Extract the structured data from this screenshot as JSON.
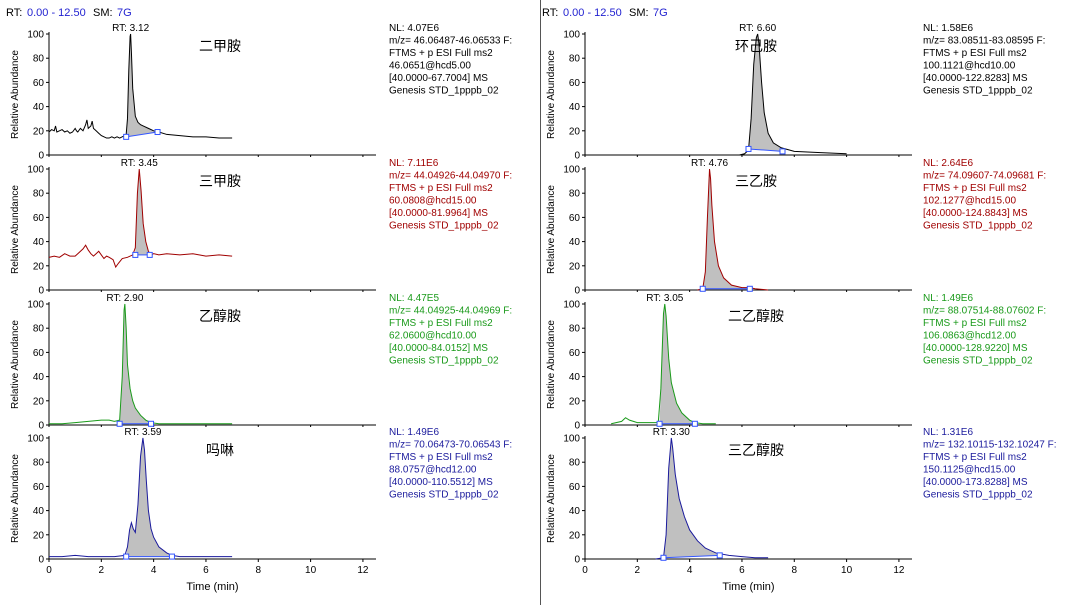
{
  "header": {
    "rt_label": "RT:",
    "rt_range": "0.00 - 12.50",
    "sm_label": "SM:",
    "sm_value": "7G"
  },
  "axis": {
    "ylabel": "Relative Abundance",
    "xlabel": "Time (min)",
    "yticks": [
      0,
      20,
      40,
      60,
      80,
      100
    ],
    "xticks": [
      0,
      2,
      4,
      6,
      8,
      10,
      12
    ],
    "xlim": [
      0,
      12.5
    ],
    "ylim": [
      0,
      100
    ]
  },
  "colors": {
    "black": "#000000",
    "red": "#a00000",
    "green": "#1a9a1a",
    "blue": "#1a1a9c",
    "fill": "#c0c0c0",
    "marker": "#3355ff",
    "header_blue": "#1f1fd0"
  },
  "chart_data": [
    {
      "type": "line",
      "compound": "二甲胺",
      "rt": "RT: 3.12",
      "peak_rt": 3.12,
      "color": "black",
      "info": [
        "NL: 4.07E6",
        "m/z= 46.06487-46.06533 F:",
        "FTMS + p ESI Full ms2",
        "46.0651@hcd5.00",
        "[40.0000-67.7004]  MS",
        "Genesis STD_1pppb_02"
      ],
      "baseline_start": [
        2.95,
        15
      ],
      "baseline_end": [
        4.15,
        19
      ],
      "points": [
        [
          0,
          19
        ],
        [
          0.1,
          21
        ],
        [
          0.2,
          20
        ],
        [
          0.25,
          24
        ],
        [
          0.3,
          19
        ],
        [
          0.4,
          20
        ],
        [
          0.5,
          21
        ],
        [
          0.6,
          19
        ],
        [
          0.7,
          20
        ],
        [
          0.8,
          18
        ],
        [
          0.9,
          19
        ],
        [
          1.0,
          22
        ],
        [
          1.05,
          20
        ],
        [
          1.1,
          19
        ],
        [
          1.2,
          22
        ],
        [
          1.3,
          20
        ],
        [
          1.4,
          25
        ],
        [
          1.45,
          29
        ],
        [
          1.5,
          22
        ],
        [
          1.6,
          24
        ],
        [
          1.65,
          28
        ],
        [
          1.7,
          22
        ],
        [
          1.8,
          20
        ],
        [
          1.9,
          18
        ],
        [
          2.0,
          16
        ],
        [
          2.1,
          15
        ],
        [
          2.2,
          14
        ],
        [
          2.3,
          14
        ],
        [
          2.4,
          15
        ],
        [
          2.5,
          14
        ],
        [
          2.6,
          15
        ],
        [
          2.7,
          14
        ],
        [
          2.8,
          15
        ],
        [
          2.9,
          16
        ],
        [
          2.95,
          17
        ],
        [
          3.0,
          30
        ],
        [
          3.05,
          70
        ],
        [
          3.1,
          98
        ],
        [
          3.12,
          100
        ],
        [
          3.15,
          85
        ],
        [
          3.2,
          55
        ],
        [
          3.3,
          32
        ],
        [
          3.4,
          27
        ],
        [
          3.5,
          25
        ],
        [
          3.6,
          24
        ],
        [
          3.8,
          22
        ],
        [
          4.0,
          20
        ],
        [
          4.2,
          19
        ],
        [
          4.5,
          17
        ],
        [
          5.0,
          16
        ],
        [
          5.5,
          15
        ],
        [
          6.0,
          15
        ],
        [
          6.5,
          14
        ],
        [
          7.0,
          14
        ]
      ]
    },
    {
      "type": "line",
      "compound": "三甲胺",
      "rt": "RT: 3.45",
      "peak_rt": 3.45,
      "color": "red",
      "info": [
        "NL: 7.11E6",
        "m/z= 44.04926-44.04970 F:",
        "FTMS + p ESI Full ms2",
        "60.0808@hcd15.00",
        "[40.0000-81.9964]  MS",
        "Genesis STD_1pppb_02"
      ],
      "baseline_start": [
        3.3,
        29
      ],
      "baseline_end": [
        3.85,
        29
      ],
      "points": [
        [
          0,
          27
        ],
        [
          0.2,
          28
        ],
        [
          0.4,
          27
        ],
        [
          0.6,
          30
        ],
        [
          0.8,
          28
        ],
        [
          1.0,
          28
        ],
        [
          1.1,
          30
        ],
        [
          1.3,
          34
        ],
        [
          1.4,
          37
        ],
        [
          1.5,
          33
        ],
        [
          1.6,
          30
        ],
        [
          1.7,
          28
        ],
        [
          1.8,
          30
        ],
        [
          1.9,
          32
        ],
        [
          2.0,
          29
        ],
        [
          2.1,
          26
        ],
        [
          2.2,
          28
        ],
        [
          2.3,
          27
        ],
        [
          2.45,
          25
        ],
        [
          2.55,
          19
        ],
        [
          2.65,
          22
        ],
        [
          2.8,
          26
        ],
        [
          3.0,
          27
        ],
        [
          3.2,
          29
        ],
        [
          3.3,
          35
        ],
        [
          3.38,
          80
        ],
        [
          3.45,
          100
        ],
        [
          3.52,
          82
        ],
        [
          3.6,
          55
        ],
        [
          3.7,
          40
        ],
        [
          3.8,
          32
        ],
        [
          3.9,
          29
        ],
        [
          4.0,
          30
        ],
        [
          4.2,
          29
        ],
        [
          4.5,
          30
        ],
        [
          5.0,
          29
        ],
        [
          5.5,
          30
        ],
        [
          6.0,
          28
        ],
        [
          6.5,
          29
        ],
        [
          7.0,
          28
        ]
      ]
    },
    {
      "type": "line",
      "compound": "乙醇胺",
      "rt": "RT: 2.90",
      "peak_rt": 2.9,
      "color": "green",
      "info": [
        "NL: 4.47E5",
        "m/z= 44.04925-44.04969 F:",
        "FTMS + p ESI Full ms2",
        "62.0600@hcd10.00",
        "[40.0000-84.0152]  MS",
        "Genesis STD_1pppb_02"
      ],
      "baseline_start": [
        2.7,
        1
      ],
      "baseline_end": [
        3.9,
        1
      ],
      "points": [
        [
          0,
          1
        ],
        [
          0.5,
          1
        ],
        [
          1.0,
          2
        ],
        [
          1.5,
          3
        ],
        [
          2.0,
          4
        ],
        [
          2.3,
          4
        ],
        [
          2.5,
          3
        ],
        [
          2.7,
          4
        ],
        [
          2.8,
          40
        ],
        [
          2.87,
          95
        ],
        [
          2.9,
          100
        ],
        [
          2.95,
          80
        ],
        [
          3.0,
          50
        ],
        [
          3.1,
          30
        ],
        [
          3.2,
          20
        ],
        [
          3.3,
          14
        ],
        [
          3.5,
          8
        ],
        [
          3.7,
          4
        ],
        [
          3.9,
          2
        ],
        [
          4.2,
          1
        ],
        [
          5.0,
          1
        ],
        [
          6.0,
          1
        ],
        [
          7.0,
          1
        ]
      ]
    },
    {
      "type": "line",
      "compound": "吗啉",
      "rt": "RT: 3.59",
      "peak_rt": 3.59,
      "color": "blue",
      "info": [
        "NL: 1.49E6",
        "m/z= 70.06473-70.06543 F:",
        "FTMS + p ESI Full ms2",
        "88.0757@hcd12.00",
        "[40.0000-110.5512]  MS",
        "Genesis STD_1pppb_02"
      ],
      "baseline_start": [
        2.95,
        2
      ],
      "baseline_end": [
        4.7,
        2
      ],
      "points": [
        [
          0,
          2
        ],
        [
          0.5,
          2
        ],
        [
          1.0,
          3
        ],
        [
          1.5,
          2
        ],
        [
          2.0,
          2
        ],
        [
          2.5,
          2
        ],
        [
          2.9,
          3
        ],
        [
          3.0,
          10
        ],
        [
          3.08,
          24
        ],
        [
          3.15,
          30
        ],
        [
          3.22,
          25
        ],
        [
          3.3,
          22
        ],
        [
          3.4,
          45
        ],
        [
          3.5,
          85
        ],
        [
          3.59,
          100
        ],
        [
          3.65,
          90
        ],
        [
          3.72,
          65
        ],
        [
          3.8,
          40
        ],
        [
          3.9,
          25
        ],
        [
          4.0,
          18
        ],
        [
          4.2,
          10
        ],
        [
          4.5,
          5
        ],
        [
          4.7,
          3
        ],
        [
          5.0,
          2
        ],
        [
          6.0,
          2
        ],
        [
          7.0,
          2
        ]
      ]
    },
    {
      "type": "line",
      "compound": "环己胺",
      "rt": "RT: 6.60",
      "peak_rt": 6.6,
      "color": "black",
      "info": [
        "NL: 1.58E6",
        "m/z= 83.08511-83.08595 F:",
        "FTMS + p ESI Full ms2",
        "100.1121@hcd10.00",
        "[40.0000-122.8283]  MS",
        "Genesis STD_1pppb_02"
      ],
      "baseline_start": [
        6.25,
        5
      ],
      "baseline_end": [
        7.55,
        3
      ],
      "points": [
        [
          5.9,
          0
        ],
        [
          6.1,
          1
        ],
        [
          6.25,
          4
        ],
        [
          6.35,
          30
        ],
        [
          6.45,
          75
        ],
        [
          6.55,
          97
        ],
        [
          6.6,
          100
        ],
        [
          6.65,
          92
        ],
        [
          6.75,
          60
        ],
        [
          6.85,
          35
        ],
        [
          7.0,
          18
        ],
        [
          7.2,
          10
        ],
        [
          7.5,
          6
        ],
        [
          8.0,
          3
        ],
        [
          9.0,
          2
        ],
        [
          10.0,
          1
        ]
      ]
    },
    {
      "type": "line",
      "compound": "三乙胺",
      "rt": "RT: 4.76",
      "peak_rt": 4.76,
      "color": "red",
      "info": [
        "NL: 2.64E6",
        "m/z= 74.09607-74.09681 F:",
        "FTMS + p ESI Full ms2",
        "102.1277@hcd15.00",
        "[40.0000-124.8843]  MS",
        "Genesis STD_1pppb_02"
      ],
      "baseline_start": [
        4.5,
        1
      ],
      "baseline_end": [
        6.3,
        1
      ],
      "points": [
        [
          4.3,
          0
        ],
        [
          4.5,
          1
        ],
        [
          4.6,
          15
        ],
        [
          4.68,
          60
        ],
        [
          4.76,
          100
        ],
        [
          4.8,
          92
        ],
        [
          4.85,
          70
        ],
        [
          4.95,
          40
        ],
        [
          5.1,
          20
        ],
        [
          5.3,
          10
        ],
        [
          5.6,
          4
        ],
        [
          6.0,
          2
        ],
        [
          6.3,
          2
        ],
        [
          6.5,
          1
        ],
        [
          7.0,
          0
        ]
      ]
    },
    {
      "type": "line",
      "compound": "二乙醇胺",
      "rt": "RT: 3.05",
      "peak_rt": 3.05,
      "color": "green",
      "info": [
        "NL: 1.49E6",
        "m/z= 88.07514-88.07602 F:",
        "FTMS + p ESI Full ms2",
        "106.0863@hcd12.00",
        "[40.0000-128.9220]  MS",
        "Genesis STD_1pppb_02"
      ],
      "baseline_start": [
        2.85,
        1
      ],
      "baseline_end": [
        4.2,
        1
      ],
      "points": [
        [
          1.0,
          1
        ],
        [
          1.4,
          3
        ],
        [
          1.55,
          6
        ],
        [
          1.7,
          4
        ],
        [
          2.0,
          2
        ],
        [
          2.5,
          2
        ],
        [
          2.8,
          2
        ],
        [
          2.9,
          30
        ],
        [
          3.0,
          92
        ],
        [
          3.05,
          100
        ],
        [
          3.1,
          90
        ],
        [
          3.2,
          55
        ],
        [
          3.3,
          35
        ],
        [
          3.5,
          18
        ],
        [
          3.7,
          10
        ],
        [
          4.0,
          4
        ],
        [
          4.2,
          2
        ],
        [
          4.5,
          1
        ],
        [
          5.0,
          1
        ]
      ]
    },
    {
      "type": "line",
      "compound": "三乙醇胺",
      "rt": "RT: 3.30",
      "peak_rt": 3.3,
      "color": "blue",
      "info": [
        "NL: 1.31E6",
        "m/z= 132.10115-132.10247 F:",
        "FTMS + p ESI Full ms2",
        "150.1125@hcd15.00",
        "[40.0000-173.8288]  MS",
        "Genesis STD_1pppb_02"
      ],
      "baseline_start": [
        3.0,
        1
      ],
      "baseline_end": [
        5.15,
        3
      ],
      "points": [
        [
          2.7,
          0
        ],
        [
          3.0,
          1
        ],
        [
          3.1,
          20
        ],
        [
          3.2,
          75
        ],
        [
          3.3,
          100
        ],
        [
          3.35,
          92
        ],
        [
          3.45,
          70
        ],
        [
          3.6,
          50
        ],
        [
          3.8,
          35
        ],
        [
          4.0,
          24
        ],
        [
          4.3,
          15
        ],
        [
          4.6,
          9
        ],
        [
          5.0,
          5
        ],
        [
          5.5,
          3
        ],
        [
          6.0,
          2
        ],
        [
          6.5,
          1
        ],
        [
          7.0,
          1
        ]
      ]
    }
  ]
}
